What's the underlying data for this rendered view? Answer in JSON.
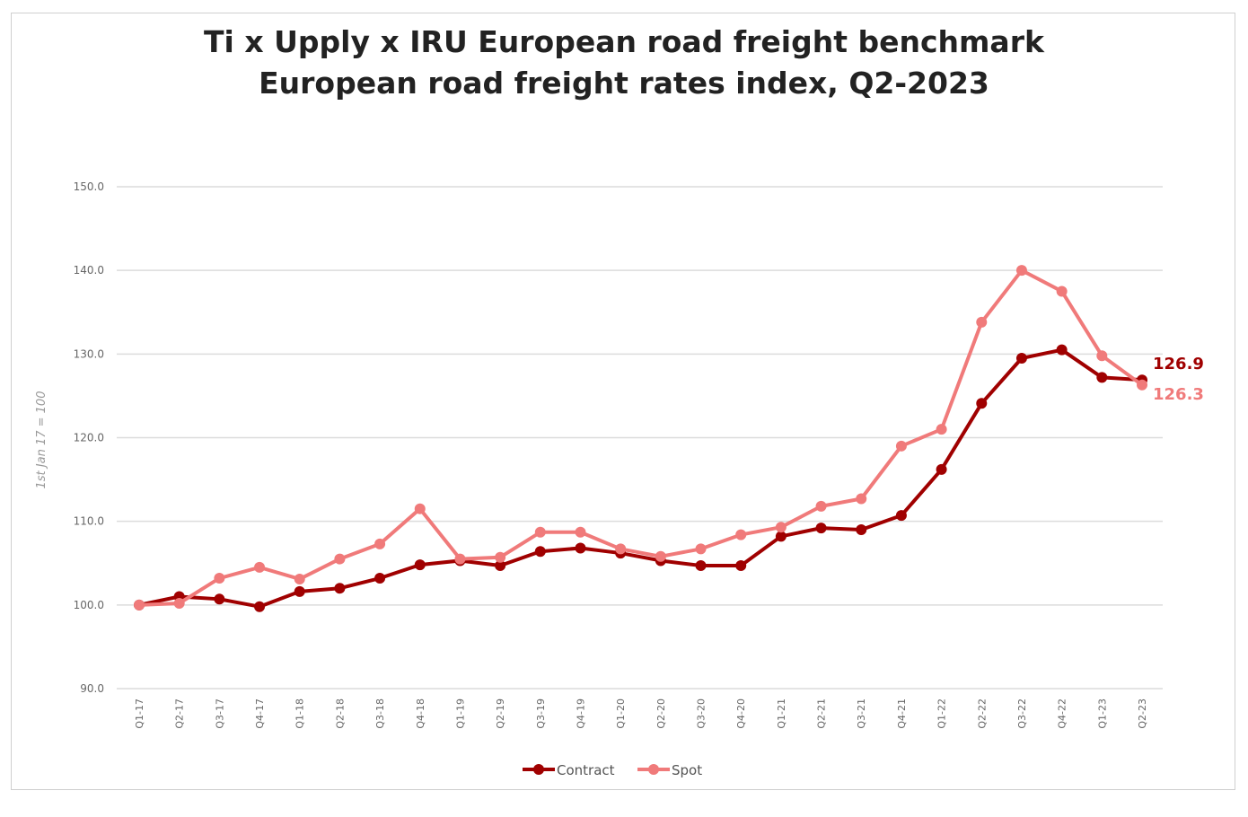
{
  "chart_data": {
    "type": "line",
    "title": "Ti x Upply x IRU European road freight benchmark",
    "subtitle": "European road freight rates index, Q2-2023",
    "xlabel": "",
    "ylabel": "1st Jan 17 = 100",
    "ylim": [
      90,
      150
    ],
    "yticks": [
      "90.0",
      "100.0",
      "110.0",
      "120.0",
      "130.0",
      "140.0",
      "150.0"
    ],
    "grid": true,
    "legend": "bottom",
    "categories": [
      "Q1-17",
      "Q2-17",
      "Q3-17",
      "Q4-17",
      "Q1-18",
      "Q2-18",
      "Q3-18",
      "Q4-18",
      "Q1-19",
      "Q2-19",
      "Q3-19",
      "Q4-19",
      "Q1-20",
      "Q2-20",
      "Q3-20",
      "Q4-20",
      "Q1-21",
      "Q2-21",
      "Q3-21",
      "Q4-21",
      "Q1-22",
      "Q2-22",
      "Q3-22",
      "Q4-22",
      "Q1-23",
      "Q2-23"
    ],
    "series": [
      {
        "name": "Contract",
        "color": "#a00000",
        "end_label": "126.9",
        "values": [
          100.0,
          101.0,
          100.7,
          99.8,
          101.6,
          102.0,
          103.2,
          104.8,
          105.3,
          104.7,
          106.4,
          106.8,
          106.2,
          105.3,
          104.7,
          104.7,
          108.2,
          109.2,
          109.0,
          110.7,
          116.2,
          124.1,
          129.5,
          130.5,
          127.2,
          126.9
        ]
      },
      {
        "name": "Spot",
        "color": "#f07a7a",
        "end_label": "126.3",
        "values": [
          100.0,
          100.2,
          103.2,
          104.5,
          103.1,
          105.5,
          107.3,
          111.5,
          105.5,
          105.7,
          108.7,
          108.7,
          106.7,
          105.8,
          106.7,
          108.4,
          109.3,
          111.8,
          112.7,
          119.0,
          121.0,
          133.8,
          140.0,
          137.5,
          129.8,
          126.3
        ]
      }
    ]
  }
}
